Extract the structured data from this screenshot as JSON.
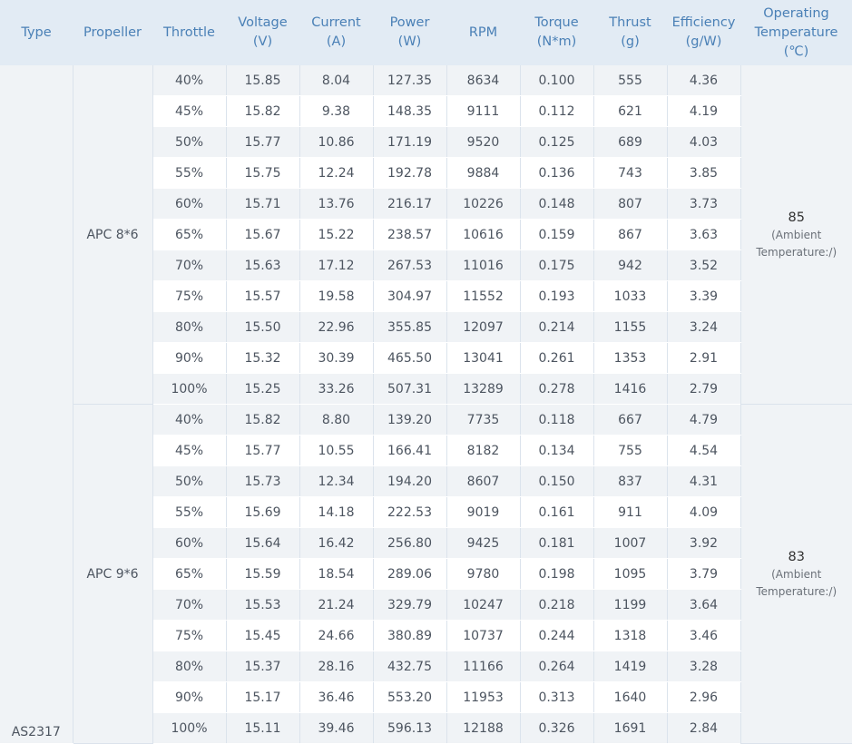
{
  "headers": [
    {
      "key": "type",
      "lines": [
        "Type"
      ]
    },
    {
      "key": "propeller",
      "lines": [
        "Propeller"
      ]
    },
    {
      "key": "throttle",
      "lines": [
        "Throttle"
      ]
    },
    {
      "key": "voltage",
      "lines": [
        "Voltage",
        "(V)"
      ]
    },
    {
      "key": "current",
      "lines": [
        "Current",
        "(A)"
      ]
    },
    {
      "key": "power",
      "lines": [
        "Power",
        "(W)"
      ]
    },
    {
      "key": "rpm",
      "lines": [
        "RPM"
      ]
    },
    {
      "key": "torque",
      "lines": [
        "Torque",
        "(N*m)"
      ]
    },
    {
      "key": "thrust",
      "lines": [
        "Thrust",
        "(g)"
      ]
    },
    {
      "key": "efficiency",
      "lines": [
        "Efficiency",
        "(g/W)"
      ]
    },
    {
      "key": "temperature",
      "lines": [
        "Operating",
        "Temperature",
        "(℃)"
      ]
    }
  ],
  "type": "AS2317",
  "groups": [
    {
      "propeller": "APC 8*6",
      "temperature": "85",
      "temperature_note_1": "(Ambient",
      "temperature_note_2": "Temperature:/)",
      "rows": [
        [
          "40%",
          "15.85",
          "8.04",
          "127.35",
          "8634",
          "0.100",
          "555",
          "4.36"
        ],
        [
          "45%",
          "15.82",
          "9.38",
          "148.35",
          "9111",
          "0.112",
          "621",
          "4.19"
        ],
        [
          "50%",
          "15.77",
          "10.86",
          "171.19",
          "9520",
          "0.125",
          "689",
          "4.03"
        ],
        [
          "55%",
          "15.75",
          "12.24",
          "192.78",
          "9884",
          "0.136",
          "743",
          "3.85"
        ],
        [
          "60%",
          "15.71",
          "13.76",
          "216.17",
          "10226",
          "0.148",
          "807",
          "3.73"
        ],
        [
          "65%",
          "15.67",
          "15.22",
          "238.57",
          "10616",
          "0.159",
          "867",
          "3.63"
        ],
        [
          "70%",
          "15.63",
          "17.12",
          "267.53",
          "11016",
          "0.175",
          "942",
          "3.52"
        ],
        [
          "75%",
          "15.57",
          "19.58",
          "304.97",
          "11552",
          "0.193",
          "1033",
          "3.39"
        ],
        [
          "80%",
          "15.50",
          "22.96",
          "355.85",
          "12097",
          "0.214",
          "1155",
          "3.24"
        ],
        [
          "90%",
          "15.32",
          "30.39",
          "465.50",
          "13041",
          "0.261",
          "1353",
          "2.91"
        ],
        [
          "100%",
          "15.25",
          "33.26",
          "507.31",
          "13289",
          "0.278",
          "1416",
          "2.79"
        ]
      ]
    },
    {
      "propeller": "APC 9*6",
      "temperature": "83",
      "temperature_note_1": "(Ambient",
      "temperature_note_2": "Temperature:/)",
      "rows": [
        [
          "40%",
          "15.82",
          "8.80",
          "139.20",
          "7735",
          "0.118",
          "667",
          "4.79"
        ],
        [
          "45%",
          "15.77",
          "10.55",
          "166.41",
          "8182",
          "0.134",
          "755",
          "4.54"
        ],
        [
          "50%",
          "15.73",
          "12.34",
          "194.20",
          "8607",
          "0.150",
          "837",
          "4.31"
        ],
        [
          "55%",
          "15.69",
          "14.18",
          "222.53",
          "9019",
          "0.161",
          "911",
          "4.09"
        ],
        [
          "60%",
          "15.64",
          "16.42",
          "256.80",
          "9425",
          "0.181",
          "1007",
          "3.92"
        ],
        [
          "65%",
          "15.59",
          "18.54",
          "289.06",
          "9780",
          "0.198",
          "1095",
          "3.79"
        ],
        [
          "70%",
          "15.53",
          "21.24",
          "329.79",
          "10247",
          "0.218",
          "1199",
          "3.64"
        ],
        [
          "75%",
          "15.45",
          "24.66",
          "380.89",
          "10737",
          "0.244",
          "1318",
          "3.46"
        ],
        [
          "80%",
          "15.37",
          "28.16",
          "432.75",
          "11166",
          "0.264",
          "1419",
          "3.28"
        ],
        [
          "90%",
          "15.17",
          "36.46",
          "553.20",
          "11953",
          "0.313",
          "1640",
          "2.96"
        ],
        [
          "100%",
          "15.11",
          "39.46",
          "596.13",
          "12188",
          "0.326",
          "1691",
          "2.84"
        ]
      ]
    }
  ]
}
